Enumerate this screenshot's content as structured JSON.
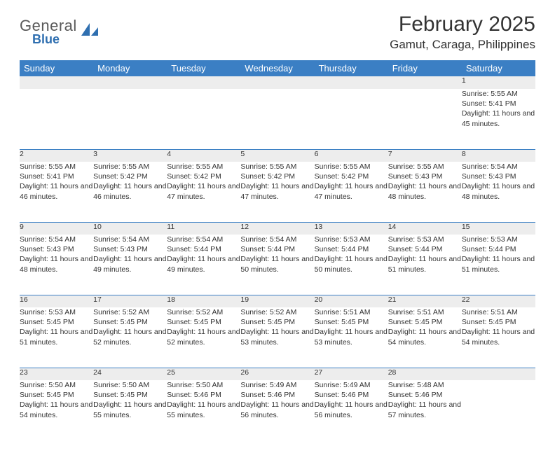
{
  "logo": {
    "main": "General",
    "sub": "Blue"
  },
  "title": "February 2025",
  "location": "Gamut, Caraga, Philippines",
  "colors": {
    "header_bg": "#3b7fc4",
    "header_text": "#ffffff",
    "daynum_bg": "#ededed",
    "page_bg": "#ffffff",
    "text": "#333333",
    "logo_gray": "#5a5a5a",
    "logo_blue": "#2f6fb0"
  },
  "day_headers": [
    "Sunday",
    "Monday",
    "Tuesday",
    "Wednesday",
    "Thursday",
    "Friday",
    "Saturday"
  ],
  "weeks": [
    {
      "nums": [
        "",
        "",
        "",
        "",
        "",
        "",
        "1"
      ],
      "cells": [
        [],
        [],
        [],
        [],
        [],
        [],
        [
          "Sunrise: 5:55 AM",
          "Sunset: 5:41 PM",
          "Daylight: 11 hours and 45 minutes."
        ]
      ]
    },
    {
      "nums": [
        "2",
        "3",
        "4",
        "5",
        "6",
        "7",
        "8"
      ],
      "cells": [
        [
          "Sunrise: 5:55 AM",
          "Sunset: 5:41 PM",
          "Daylight: 11 hours and 46 minutes."
        ],
        [
          "Sunrise: 5:55 AM",
          "Sunset: 5:42 PM",
          "Daylight: 11 hours and 46 minutes."
        ],
        [
          "Sunrise: 5:55 AM",
          "Sunset: 5:42 PM",
          "Daylight: 11 hours and 47 minutes."
        ],
        [
          "Sunrise: 5:55 AM",
          "Sunset: 5:42 PM",
          "Daylight: 11 hours and 47 minutes."
        ],
        [
          "Sunrise: 5:55 AM",
          "Sunset: 5:42 PM",
          "Daylight: 11 hours and 47 minutes."
        ],
        [
          "Sunrise: 5:55 AM",
          "Sunset: 5:43 PM",
          "Daylight: 11 hours and 48 minutes."
        ],
        [
          "Sunrise: 5:54 AM",
          "Sunset: 5:43 PM",
          "Daylight: 11 hours and 48 minutes."
        ]
      ]
    },
    {
      "nums": [
        "9",
        "10",
        "11",
        "12",
        "13",
        "14",
        "15"
      ],
      "cells": [
        [
          "Sunrise: 5:54 AM",
          "Sunset: 5:43 PM",
          "Daylight: 11 hours and 48 minutes."
        ],
        [
          "Sunrise: 5:54 AM",
          "Sunset: 5:43 PM",
          "Daylight: 11 hours and 49 minutes."
        ],
        [
          "Sunrise: 5:54 AM",
          "Sunset: 5:44 PM",
          "Daylight: 11 hours and 49 minutes."
        ],
        [
          "Sunrise: 5:54 AM",
          "Sunset: 5:44 PM",
          "Daylight: 11 hours and 50 minutes."
        ],
        [
          "Sunrise: 5:53 AM",
          "Sunset: 5:44 PM",
          "Daylight: 11 hours and 50 minutes."
        ],
        [
          "Sunrise: 5:53 AM",
          "Sunset: 5:44 PM",
          "Daylight: 11 hours and 51 minutes."
        ],
        [
          "Sunrise: 5:53 AM",
          "Sunset: 5:44 PM",
          "Daylight: 11 hours and 51 minutes."
        ]
      ]
    },
    {
      "nums": [
        "16",
        "17",
        "18",
        "19",
        "20",
        "21",
        "22"
      ],
      "cells": [
        [
          "Sunrise: 5:53 AM",
          "Sunset: 5:45 PM",
          "Daylight: 11 hours and 51 minutes."
        ],
        [
          "Sunrise: 5:52 AM",
          "Sunset: 5:45 PM",
          "Daylight: 11 hours and 52 minutes."
        ],
        [
          "Sunrise: 5:52 AM",
          "Sunset: 5:45 PM",
          "Daylight: 11 hours and 52 minutes."
        ],
        [
          "Sunrise: 5:52 AM",
          "Sunset: 5:45 PM",
          "Daylight: 11 hours and 53 minutes."
        ],
        [
          "Sunrise: 5:51 AM",
          "Sunset: 5:45 PM",
          "Daylight: 11 hours and 53 minutes."
        ],
        [
          "Sunrise: 5:51 AM",
          "Sunset: 5:45 PM",
          "Daylight: 11 hours and 54 minutes."
        ],
        [
          "Sunrise: 5:51 AM",
          "Sunset: 5:45 PM",
          "Daylight: 11 hours and 54 minutes."
        ]
      ]
    },
    {
      "nums": [
        "23",
        "24",
        "25",
        "26",
        "27",
        "28",
        ""
      ],
      "cells": [
        [
          "Sunrise: 5:50 AM",
          "Sunset: 5:45 PM",
          "Daylight: 11 hours and 54 minutes."
        ],
        [
          "Sunrise: 5:50 AM",
          "Sunset: 5:45 PM",
          "Daylight: 11 hours and 55 minutes."
        ],
        [
          "Sunrise: 5:50 AM",
          "Sunset: 5:46 PM",
          "Daylight: 11 hours and 55 minutes."
        ],
        [
          "Sunrise: 5:49 AM",
          "Sunset: 5:46 PM",
          "Daylight: 11 hours and 56 minutes."
        ],
        [
          "Sunrise: 5:49 AM",
          "Sunset: 5:46 PM",
          "Daylight: 11 hours and 56 minutes."
        ],
        [
          "Sunrise: 5:48 AM",
          "Sunset: 5:46 PM",
          "Daylight: 11 hours and 57 minutes."
        ],
        []
      ]
    }
  ]
}
